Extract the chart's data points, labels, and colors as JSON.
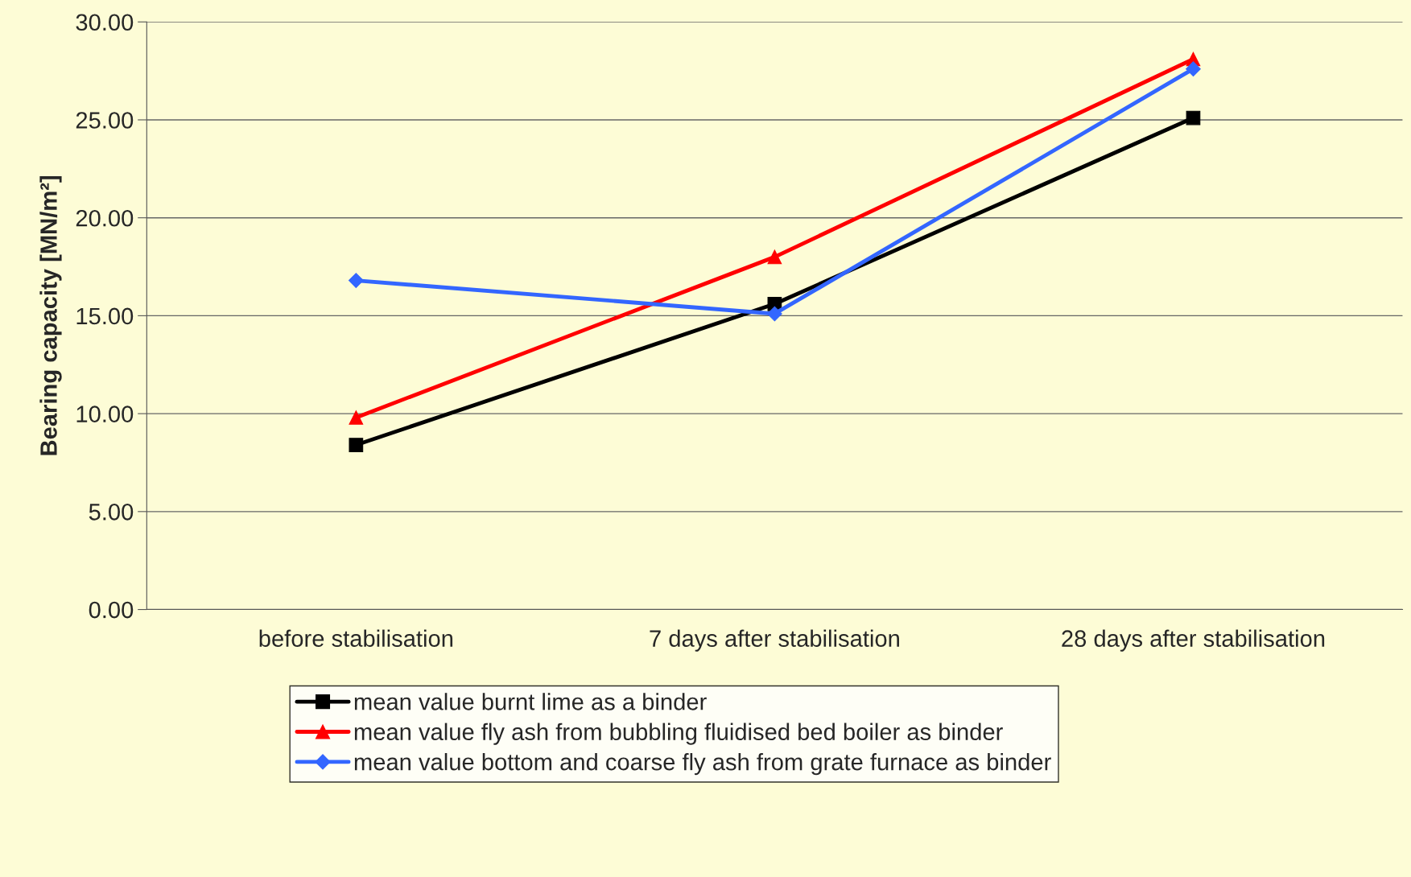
{
  "chart_data": {
    "type": "line",
    "ylabel": "Bearing capacity [MN/m²]",
    "categories": [
      "before stabilisation",
      "7 days after stabilisation",
      "28 days after stabilisation"
    ],
    "series": [
      {
        "name": "mean value burnt lime as a binder",
        "color": "#000000",
        "marker": "square",
        "values": [
          8.4,
          15.6,
          25.1
        ]
      },
      {
        "name": "mean value fly ash from bubbling fluidised bed boiler as binder",
        "color": "#ff0000",
        "marker": "triangle",
        "values": [
          9.8,
          18.0,
          28.1
        ]
      },
      {
        "name": "mean value bottom and coarse fly ash from grate furnace as binder",
        "color": "#3366ff",
        "marker": "diamond",
        "values": [
          16.8,
          15.1,
          27.6
        ]
      }
    ],
    "ylim": [
      0,
      30
    ],
    "yticks": [
      {
        "value": 0,
        "label": "0.00"
      },
      {
        "value": 5,
        "label": "5.00"
      },
      {
        "value": 10,
        "label": "10.00"
      },
      {
        "value": 15,
        "label": "15.00"
      },
      {
        "value": 20,
        "label": "20.00"
      },
      {
        "value": 25,
        "label": "25.00"
      },
      {
        "value": 30,
        "label": "30.00"
      }
    ],
    "grid": "y",
    "legend": "bottom",
    "line_style": "solid"
  }
}
